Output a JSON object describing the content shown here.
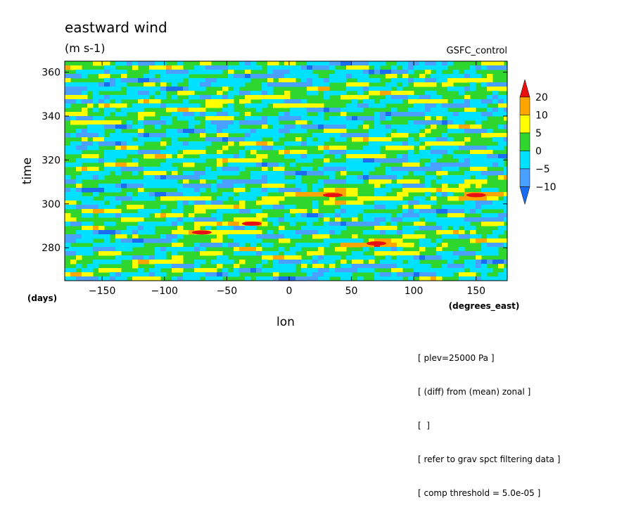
{
  "chart_data": {
    "type": "heatmap",
    "title": "eastward wind",
    "units": "(m s-1)",
    "subtitle_right": "GSFC_control",
    "xlabel": "lon",
    "xunits": "(degrees_east)",
    "ylabel": "time",
    "yunits": "(days)",
    "xlim": [
      -180,
      175
    ],
    "ylim": [
      265,
      365
    ],
    "x_ticks": [
      -150,
      -100,
      -50,
      0,
      50,
      100,
      150
    ],
    "y_ticks": [
      280,
      300,
      320,
      340,
      360
    ],
    "colorbar": {
      "labels": [
        "20",
        "10",
        "5",
        "0",
        "−5",
        "−10"
      ],
      "levels": [
        -10,
        -5,
        0,
        5,
        10,
        20
      ],
      "colors": [
        "#1a6cf0",
        "#4aa0ff",
        "#00e0ff",
        "#2ed62e",
        "#ffff00",
        "#ffa500",
        "#e81010"
      ]
    },
    "field_description": "zonal-mean-removed eastward wind anomaly, mostly between -10 and 10 m/s with eastward-tilted bands and a few local maxima above 20",
    "strong_features": [
      {
        "lon": -30,
        "time": 291,
        "value": 22
      },
      {
        "lon": 35,
        "time": 304,
        "value": 21
      },
      {
        "lon": 150,
        "time": 304,
        "value": 21
      },
      {
        "lon": -70,
        "time": 287,
        "value": 21
      },
      {
        "lon": 70,
        "time": 282,
        "value": 20
      }
    ]
  },
  "notes": [
    "[ plev=25000 Pa ]",
    "[ (diff) from (mean) zonal ]",
    "[  ]",
    "[ refer to grav spct filtering data ]",
    "[ comp threshold = 5.0e-05 ]"
  ]
}
